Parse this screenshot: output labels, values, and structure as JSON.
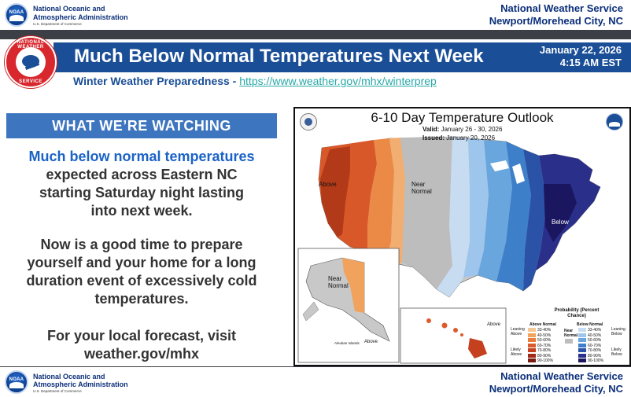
{
  "header": {
    "logo_text": "NOAA",
    "org_line1": "National Oceanic and",
    "org_line2": "Atmospheric Administration",
    "dept": "U.S. Department of Commerce",
    "office_line1": "National Weather Service",
    "office_line2": "Newport/Morehead City, NC"
  },
  "seal": {
    "text_top": "NATIONAL WEATHER",
    "text_bottom": "SERVICE"
  },
  "banner": {
    "title": "Much Below Normal Temperatures Next Week",
    "date": "January 22, 2026",
    "time": "4:15 AM EST",
    "subtitle_prefix": "Winter Weather Preparedness - ",
    "subtitle_link": "https://www.weather.gov/mhx/winterprep"
  },
  "panel": {
    "heading": "WHAT WE’RE WATCHING",
    "highlight": "Much below normal temperatures",
    "line1": "expected across Eastern NC",
    "line2": "starting Saturday night lasting",
    "line3": "into next week.",
    "para2_line1": "Now is a good time to prepare",
    "para2_line2": "yourself and your home for a long",
    "para2_line3": "duration event of excessively cold",
    "para2_line4": "temperatures.",
    "para3_line1": "For your local forecast, visit",
    "para3_line2": "weather.gov/mhx"
  },
  "map": {
    "title": "6-10 Day Temperature Outlook",
    "valid_label": "Valid:",
    "valid_value": "January 26 - 30, 2026",
    "issued_label": "Issued:",
    "issued_value": "January 20, 2026",
    "label_above_west": "Above",
    "label_near_normal": "Near Normal",
    "label_below": "Below",
    "label_near_alaska": "Near Normal",
    "label_above_hawaii": "Above",
    "label_aleutian": "Aleutian Islands",
    "label_above_aleutian": "Above",
    "legend": {
      "title": "Probability (Percent Chance)",
      "above_group": "Above Normal",
      "below_group": "Below Normal",
      "near_group": "Near Normal",
      "leaning_above": "Leaning Above",
      "likely_above": "Likely Above",
      "leaning_below": "Leaning Below",
      "likely_below": "Likely Below",
      "ranges": [
        "33-40%",
        "40-50%",
        "50-60%",
        "60-70%",
        "70-80%",
        "80-90%",
        "90-100%"
      ],
      "above_colors": [
        "#f6c796",
        "#f1a35d",
        "#ea7d3c",
        "#dc5b2c",
        "#c4401f",
        "#a12a17",
        "#7b1a10"
      ],
      "below_colors": [
        "#c7dcf1",
        "#9ec6ec",
        "#6aa6de",
        "#3e7fca",
        "#2a53a8",
        "#2a2f8a",
        "#1b1660"
      ]
    }
  },
  "footer": {
    "logo_text": "NOAA",
    "org_line1": "National Oceanic and",
    "org_line2": "Atmospheric Administration",
    "dept": "U.S. Department of Commerce",
    "office_line1": "National Weather Service",
    "office_line2": "Newport/Morehead City, NC"
  },
  "colors": {
    "title_bar": "#1a4e97",
    "heading_bar": "#3d75bf",
    "highlight_text": "#1a62c6",
    "link": "#2aa8a8",
    "dark_bar": "#3c3f45"
  }
}
